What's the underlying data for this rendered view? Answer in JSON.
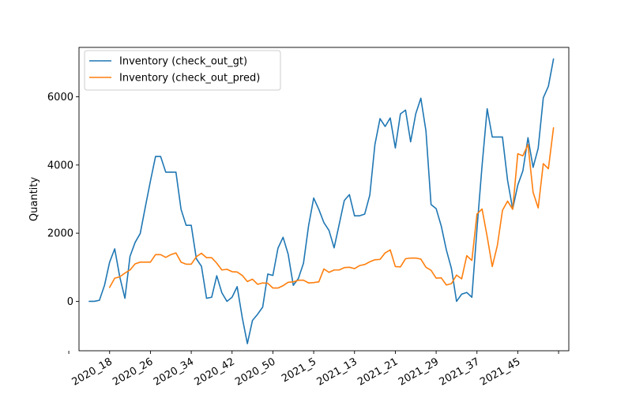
{
  "chart_data": {
    "type": "line",
    "title": "",
    "xlabel": "",
    "ylabel": "Quantity",
    "x_tick_labels": [
      "2020_18",
      "2020_26",
      "2020_34",
      "2020_42",
      "2020_50",
      "2021_5",
      "2021_13",
      "2021_21",
      "2021_29",
      "2021_37",
      "2021_45"
    ],
    "x_tick_index_start": 1,
    "x_tick_index_step": 8,
    "ylim": [
      -1450,
      7450
    ],
    "y_ticks": [
      0,
      2000,
      4000,
      6000
    ],
    "y_tick_labels": [
      "0",
      "2000",
      "4000",
      "6000"
    ],
    "grid": false,
    "legend_position": "upper-left",
    "series": [
      {
        "name": "Inventory (check_out_gt)",
        "color": "#1f77b4",
        "start_index": -3,
        "values": [
          0,
          0,
          30,
          470,
          1150,
          1540,
          710,
          90,
          1320,
          1730,
          1990,
          2770,
          3530,
          4250,
          4250,
          3790,
          3790,
          3790,
          2700,
          2230,
          2230,
          1250,
          1030,
          90,
          120,
          750,
          250,
          0,
          120,
          430,
          -480,
          -1240,
          -560,
          -380,
          -170,
          800,
          760,
          1560,
          1880,
          1380,
          470,
          670,
          1120,
          2220,
          3030,
          2700,
          2310,
          2080,
          1570,
          2260,
          2960,
          3130,
          2510,
          2510,
          2560,
          3120,
          4600,
          5360,
          5130,
          5380,
          4500,
          5500,
          5610,
          4680,
          5500,
          5960,
          5000,
          2840,
          2720,
          2210,
          1510,
          960,
          0,
          210,
          260,
          120,
          2120,
          3980,
          5650,
          4820,
          4820,
          4820,
          3550,
          2710,
          3410,
          3830,
          4800,
          3930,
          4490,
          5970,
          6310,
          7110
        ]
      },
      {
        "name": "Inventory (check_out_pred)",
        "color": "#ff7f0e",
        "start_index": 1,
        "values": [
          410,
          680,
          720,
          830,
          920,
          1100,
          1150,
          1150,
          1150,
          1370,
          1370,
          1290,
          1370,
          1420,
          1150,
          1090,
          1090,
          1310,
          1410,
          1280,
          1280,
          1120,
          920,
          940,
          870,
          860,
          760,
          580,
          650,
          500,
          540,
          530,
          390,
          390,
          460,
          560,
          570,
          620,
          620,
          540,
          550,
          570,
          950,
          850,
          920,
          920,
          990,
          1000,
          960,
          1050,
          1080,
          1160,
          1220,
          1230,
          1420,
          1510,
          1020,
          1010,
          1250,
          1270,
          1270,
          1240,
          1000,
          910,
          680,
          690,
          480,
          520,
          770,
          660,
          1340,
          1200,
          2560,
          2710,
          1900,
          1020,
          1640,
          2670,
          2940,
          2700,
          4330,
          4270,
          4600,
          3200,
          2740,
          4040,
          3890,
          5090
        ]
      }
    ]
  }
}
